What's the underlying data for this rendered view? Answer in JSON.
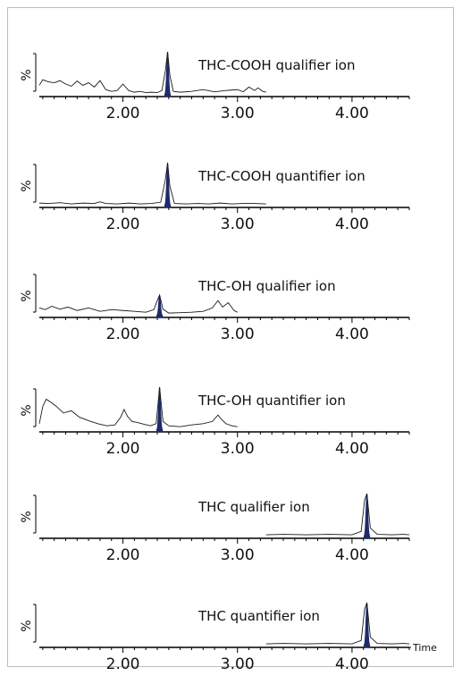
{
  "colors": {
    "trace": "#1a1a1a",
    "peak_fill": "#1f2a6b",
    "axis": "#000000",
    "frame": "#bdbdbd"
  },
  "chart_data": [
    {
      "type": "line",
      "title": "THC-COOH qualifier ion",
      "ylabel": "%",
      "xlim": [
        1.27,
        4.5
      ],
      "x_ticks": [
        "2.00",
        "3.00",
        "4.00"
      ],
      "series": [
        {
          "x": [
            1.27,
            1.3,
            1.35,
            1.4,
            1.45,
            1.5,
            1.55,
            1.6,
            1.65,
            1.7,
            1.75,
            1.8,
            1.85,
            1.9,
            1.95,
            2.0,
            2.05,
            2.1,
            2.15,
            2.2,
            2.25,
            2.3,
            2.34,
            2.37,
            2.39,
            2.41,
            2.44,
            2.5,
            2.6,
            2.7,
            2.8,
            2.9,
            3.0,
            3.05,
            3.1,
            3.15,
            3.18,
            3.22,
            3.25
          ],
          "y": [
            0.22,
            0.35,
            0.3,
            0.28,
            0.33,
            0.25,
            0.2,
            0.32,
            0.22,
            0.28,
            0.18,
            0.33,
            0.12,
            0.08,
            0.1,
            0.25,
            0.1,
            0.06,
            0.08,
            0.05,
            0.06,
            0.05,
            0.1,
            0.55,
            1.0,
            0.45,
            0.08,
            0.06,
            0.08,
            0.12,
            0.07,
            0.1,
            0.12,
            0.07,
            0.18,
            0.1,
            0.16,
            0.08,
            0.06
          ]
        }
      ],
      "peak": {
        "x": 2.39,
        "width": 0.05
      }
    },
    {
      "type": "line",
      "title": "THC-COOH quantifier ion",
      "ylabel": "%",
      "xlim": [
        1.27,
        4.5
      ],
      "x_ticks": [
        "2.00",
        "3.00",
        "4.00"
      ],
      "series": [
        {
          "x": [
            1.27,
            1.35,
            1.45,
            1.55,
            1.65,
            1.75,
            1.8,
            1.85,
            1.95,
            2.05,
            2.15,
            2.25,
            2.33,
            2.37,
            2.39,
            2.41,
            2.45,
            2.55,
            2.65,
            2.75,
            2.85,
            2.95,
            3.05,
            3.15,
            3.25
          ],
          "y": [
            0.06,
            0.05,
            0.07,
            0.04,
            0.06,
            0.05,
            0.09,
            0.05,
            0.04,
            0.06,
            0.04,
            0.05,
            0.08,
            0.6,
            1.0,
            0.45,
            0.05,
            0.04,
            0.05,
            0.04,
            0.06,
            0.04,
            0.05,
            0.05,
            0.04
          ]
        }
      ],
      "peak": {
        "x": 2.39,
        "width": 0.05
      }
    },
    {
      "type": "line",
      "title": "THC-OH qualifier ion",
      "ylabel": "%",
      "xlim": [
        1.27,
        4.5
      ],
      "x_ticks": [
        "2.00",
        "3.00",
        "4.00"
      ],
      "series": [
        {
          "x": [
            1.27,
            1.32,
            1.38,
            1.45,
            1.52,
            1.6,
            1.7,
            1.8,
            1.9,
            2.0,
            2.1,
            2.2,
            2.27,
            2.3,
            2.32,
            2.35,
            2.4,
            2.5,
            2.6,
            2.7,
            2.78,
            2.83,
            2.87,
            2.92,
            2.97,
            3.0
          ],
          "y": [
            0.18,
            0.14,
            0.22,
            0.15,
            0.2,
            0.12,
            0.18,
            0.1,
            0.14,
            0.12,
            0.1,
            0.08,
            0.14,
            0.35,
            0.48,
            0.15,
            0.06,
            0.07,
            0.08,
            0.1,
            0.18,
            0.35,
            0.2,
            0.3,
            0.12,
            0.08
          ]
        }
      ],
      "peak": {
        "x": 2.32,
        "width": 0.05
      }
    },
    {
      "type": "line",
      "title": "THC-OH quantifier ion",
      "ylabel": "%",
      "xlim": [
        1.27,
        4.5
      ],
      "x_ticks": [
        "2.00",
        "3.00",
        "4.00"
      ],
      "series": [
        {
          "x": [
            1.27,
            1.3,
            1.33,
            1.37,
            1.42,
            1.48,
            1.55,
            1.62,
            1.7,
            1.78,
            1.86,
            1.93,
            1.98,
            2.01,
            2.04,
            2.08,
            2.12,
            2.18,
            2.24,
            2.29,
            2.32,
            2.35,
            2.4,
            2.5,
            2.6,
            2.7,
            2.78,
            2.83,
            2.86,
            2.9,
            2.95,
            3.0
          ],
          "y": [
            0.15,
            0.55,
            0.72,
            0.65,
            0.55,
            0.4,
            0.45,
            0.3,
            0.22,
            0.15,
            0.1,
            0.12,
            0.3,
            0.48,
            0.32,
            0.2,
            0.18,
            0.14,
            0.1,
            0.15,
            1.0,
            0.2,
            0.1,
            0.08,
            0.12,
            0.15,
            0.2,
            0.35,
            0.25,
            0.15,
            0.1,
            0.08
          ]
        }
      ],
      "peak": {
        "x": 2.32,
        "width": 0.05
      }
    },
    {
      "type": "line",
      "title": "THC qualifier ion",
      "ylabel": "%",
      "xlim": [
        1.27,
        4.5
      ],
      "x_ticks": [
        "2.00",
        "3.00",
        "4.00"
      ],
      "series": [
        {
          "x": [
            3.25,
            3.4,
            3.6,
            3.8,
            4.0,
            4.08,
            4.11,
            4.13,
            4.16,
            4.22,
            4.35,
            4.45,
            4.5
          ],
          "y": [
            0.04,
            0.05,
            0.04,
            0.05,
            0.04,
            0.12,
            0.85,
            1.0,
            0.2,
            0.05,
            0.04,
            0.05,
            0.04
          ]
        }
      ],
      "peak": {
        "x": 4.13,
        "width": 0.05
      }
    },
    {
      "type": "line",
      "title": "THC quantifier ion",
      "xlabel": "Time",
      "ylabel": "%",
      "xlim": [
        1.27,
        4.5
      ],
      "x_ticks": [
        "2.00",
        "3.00",
        "4.00"
      ],
      "series": [
        {
          "x": [
            3.25,
            3.4,
            3.6,
            3.8,
            4.0,
            4.08,
            4.11,
            4.13,
            4.16,
            4.22,
            4.35,
            4.45,
            4.5
          ],
          "y": [
            0.04,
            0.05,
            0.04,
            0.05,
            0.04,
            0.12,
            0.85,
            1.0,
            0.2,
            0.05,
            0.04,
            0.05,
            0.04
          ]
        }
      ],
      "peak": {
        "x": 4.13,
        "width": 0.05
      }
    }
  ]
}
